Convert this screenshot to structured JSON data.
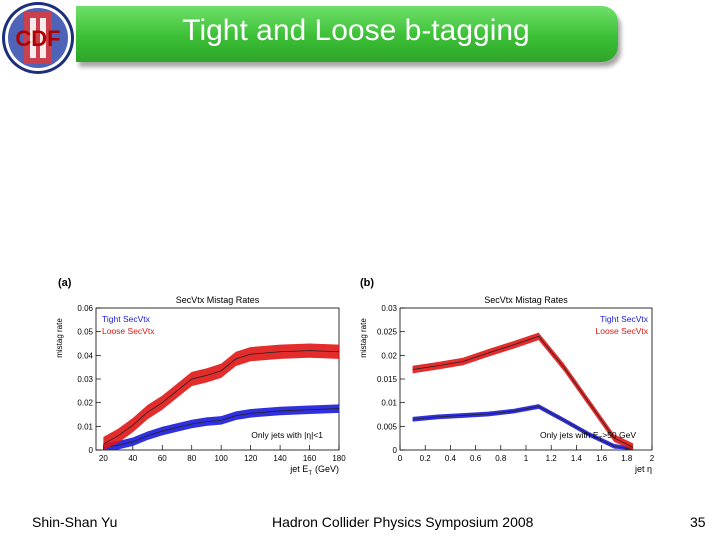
{
  "slide": {
    "title": "Tight and Loose b-tagging",
    "logo_text": "CDF",
    "footer_author": "Shin-Shan Yu",
    "footer_event": "Hadron Collider Physics Symposium 2008",
    "page_number": "35"
  },
  "colors": {
    "tight": "#1a1adb",
    "loose": "#e01515",
    "title_bar": "#3cbf36"
  },
  "chart_data": [
    {
      "type": "line",
      "panel_label": "(a)",
      "title": "SecVtx Mistag Rates",
      "xlabel": "jet E",
      "xlabel_sub": "T",
      "xlabel_unit": "(GeV)",
      "ylabel": "mistag rate",
      "xlim": [
        15,
        180
      ],
      "ylim": [
        0,
        0.06
      ],
      "xticks": [
        20,
        40,
        60,
        80,
        100,
        120,
        140,
        160,
        180
      ],
      "xtick_labels": [
        "20",
        "40",
        "60",
        "80",
        "100",
        "120",
        "140",
        "160",
        "180"
      ],
      "yticks": [
        0,
        0.01,
        0.02,
        0.03,
        0.04,
        0.05,
        0.06
      ],
      "ytick_labels": [
        "0",
        "0.01",
        "0.02",
        "0.03",
        "0.04",
        "0.05",
        "0.06"
      ],
      "legend_placement": "top-left",
      "annotation": "Only jets with |η|<1",
      "series": [
        {
          "name": "Tight SecVtx",
          "color_key": "tight",
          "band": 0.0018,
          "x": [
            20,
            30,
            40,
            50,
            60,
            70,
            80,
            90,
            100,
            110,
            120,
            140,
            160,
            180
          ],
          "y": [
            0.001,
            0.002,
            0.0035,
            0.006,
            0.008,
            0.0095,
            0.011,
            0.012,
            0.0125,
            0.0145,
            0.0155,
            0.0165,
            0.017,
            0.0175
          ]
        },
        {
          "name": "Loose SecVtx",
          "color_key": "loose",
          "band": 0.003,
          "x": [
            20,
            30,
            40,
            50,
            60,
            70,
            80,
            90,
            100,
            110,
            120,
            140,
            160,
            180
          ],
          "y": [
            0.0025,
            0.006,
            0.0105,
            0.016,
            0.02,
            0.025,
            0.03,
            0.0315,
            0.0335,
            0.0385,
            0.0405,
            0.0415,
            0.042,
            0.0415
          ]
        }
      ]
    },
    {
      "type": "line",
      "panel_label": "(b)",
      "title": "SecVtx Mistag Rates",
      "xlabel": "jet η",
      "ylabel": "mistag rate",
      "xlim": [
        0,
        2
      ],
      "ylim": [
        0,
        0.03
      ],
      "xticks": [
        0,
        0.2,
        0.4,
        0.6,
        0.8,
        1,
        1.2,
        1.4,
        1.6,
        1.8,
        2
      ],
      "xtick_labels": [
        "0",
        "0.2",
        "0.4",
        "0.6",
        "0.8",
        "1",
        "1.2",
        "1.4",
        "1.6",
        "1.8",
        "2"
      ],
      "yticks": [
        0,
        0.005,
        0.01,
        0.015,
        0.02,
        0.025,
        0.03
      ],
      "ytick_labels": [
        "0",
        "0.005",
        "0.01",
        "0.015",
        "0.02",
        "0.025",
        "0.03"
      ],
      "legend_placement": "top-right",
      "annotation": "Only jets with E",
      "annotation_sub": "T",
      "annotation_tail": ">50 GeV",
      "series": [
        {
          "name": "Tight SecVtx",
          "color_key": "tight",
          "band": 0.0005,
          "x": [
            0.1,
            0.3,
            0.5,
            0.7,
            0.9,
            1.1,
            1.3,
            1.5,
            1.7,
            1.85
          ],
          "y": [
            0.0065,
            0.007,
            0.0073,
            0.0076,
            0.0082,
            0.0092,
            0.0063,
            0.0033,
            0.0008,
            0.0001
          ]
        },
        {
          "name": "Loose SecVtx",
          "color_key": "loose",
          "band": 0.0008,
          "x": [
            0.1,
            0.3,
            0.5,
            0.7,
            0.9,
            1.1,
            1.3,
            1.5,
            1.7,
            1.85
          ],
          "y": [
            0.017,
            0.0178,
            0.0187,
            0.0205,
            0.0222,
            0.024,
            0.0175,
            0.01,
            0.0025,
            0.0006
          ]
        }
      ]
    }
  ]
}
